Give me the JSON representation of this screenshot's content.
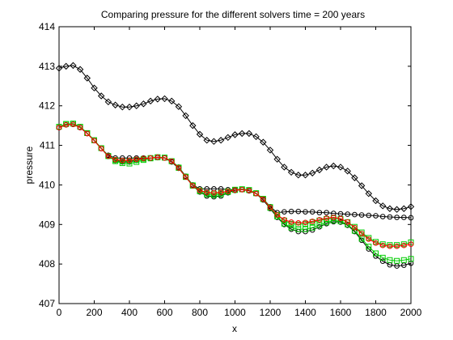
{
  "chart_data": {
    "type": "line",
    "title": "Comparing pressure for the different solvers time = 200 years",
    "xlabel": "x",
    "ylabel": "pressure",
    "xlim": [
      0,
      2000
    ],
    "ylim": [
      407,
      414
    ],
    "xticks": [
      "0",
      "200",
      "400",
      "600",
      "800",
      "1000",
      "1200",
      "1400",
      "1600",
      "1800",
      "2000"
    ],
    "yticks": [
      "407",
      "408",
      "409",
      "410",
      "411",
      "412",
      "413",
      "414"
    ],
    "grid": false,
    "legend": "none",
    "series": [
      {
        "color": "#000000",
        "marker": "diamond",
        "x": [
          0,
          40,
          80,
          120,
          160,
          200,
          240,
          280,
          320,
          360,
          400,
          440,
          480,
          520,
          560,
          600,
          640,
          680,
          720,
          760,
          800,
          840,
          880,
          920,
          960,
          1000,
          1040,
          1080,
          1120,
          1160,
          1200,
          1240,
          1280,
          1320,
          1360,
          1400,
          1440,
          1480,
          1520,
          1560,
          1600,
          1640,
          1680,
          1720,
          1760,
          1800,
          1840,
          1880,
          1920,
          1960,
          2000
        ],
        "values": [
          412.95,
          413.0,
          413.02,
          412.92,
          412.7,
          412.45,
          412.25,
          412.1,
          412.02,
          411.97,
          411.97,
          412.0,
          412.05,
          412.12,
          412.17,
          412.18,
          412.12,
          411.98,
          411.75,
          411.5,
          411.28,
          411.13,
          411.1,
          411.13,
          411.2,
          411.27,
          411.3,
          411.3,
          411.22,
          411.08,
          410.88,
          410.65,
          410.45,
          410.32,
          410.25,
          410.25,
          410.3,
          410.38,
          410.45,
          410.48,
          410.45,
          410.35,
          410.18,
          409.98,
          409.78,
          409.6,
          409.47,
          409.4,
          409.38,
          409.4,
          409.45
        ]
      },
      {
        "color": "#000000",
        "marker": "circle",
        "x": [
          0,
          40,
          80,
          120,
          160,
          200,
          240,
          280,
          320,
          360,
          400,
          440,
          480,
          520,
          560,
          600,
          640,
          680,
          720,
          760,
          800,
          840,
          880,
          920,
          960,
          1000,
          1040,
          1080,
          1120,
          1160,
          1200,
          1240,
          1280,
          1320,
          1360,
          1400,
          1440,
          1480,
          1520,
          1560,
          1600,
          1640,
          1680,
          1720,
          1760,
          1800,
          1840,
          1880,
          1920,
          1960,
          2000
        ],
        "values": [
          411.45,
          411.52,
          411.53,
          411.45,
          411.3,
          411.12,
          410.92,
          410.75,
          410.68,
          410.68,
          410.68,
          410.68,
          410.68,
          410.68,
          410.69,
          410.68,
          410.6,
          410.45,
          410.22,
          410.0,
          409.9,
          409.9,
          409.9,
          409.9,
          409.88,
          409.88,
          409.88,
          409.85,
          409.78,
          409.65,
          409.45,
          409.3,
          409.32,
          409.33,
          409.33,
          409.32,
          409.32,
          409.3,
          409.3,
          409.28,
          409.27,
          409.26,
          409.25,
          409.24,
          409.23,
          409.22,
          409.2,
          409.19,
          409.18,
          409.18,
          409.17
        ]
      },
      {
        "color": "#000000",
        "marker": "circle",
        "x": [
          0,
          40,
          80,
          120,
          160,
          200,
          240,
          280,
          320,
          360,
          400,
          440,
          480,
          520,
          560,
          600,
          640,
          680,
          720,
          760,
          800,
          840,
          880,
          920,
          960,
          1000,
          1040,
          1080,
          1120,
          1160,
          1200,
          1240,
          1280,
          1320,
          1360,
          1400,
          1440,
          1480,
          1520,
          1560,
          1600,
          1640,
          1680,
          1720,
          1760,
          1800,
          1840,
          1880,
          1920,
          1960,
          2000
        ],
        "values": [
          411.45,
          411.52,
          411.53,
          411.45,
          411.3,
          411.12,
          410.92,
          410.72,
          410.62,
          410.58,
          410.58,
          410.62,
          410.66,
          410.68,
          410.7,
          410.68,
          410.58,
          410.42,
          410.2,
          409.98,
          409.82,
          409.72,
          409.7,
          409.72,
          409.8,
          409.86,
          409.88,
          409.86,
          409.78,
          409.62,
          409.4,
          409.18,
          409.0,
          408.88,
          408.82,
          408.82,
          408.86,
          408.94,
          409.02,
          409.07,
          409.06,
          408.98,
          408.82,
          408.6,
          408.38,
          408.2,
          408.07,
          407.98,
          407.95,
          407.97,
          408.02
        ]
      },
      {
        "color": "#00cc00",
        "marker": "square",
        "x": [
          0,
          40,
          80,
          120,
          160,
          200,
          240,
          280,
          320,
          360,
          400,
          440,
          480,
          520,
          560,
          600,
          640,
          680,
          720,
          760,
          800,
          840,
          880,
          920,
          960,
          1000,
          1040,
          1080,
          1120,
          1160,
          1200,
          1240,
          1280,
          1320,
          1360,
          1400,
          1440,
          1480,
          1520,
          1560,
          1600,
          1640,
          1680,
          1720,
          1760,
          1800,
          1840,
          1880,
          1920,
          1960,
          2000
        ],
        "values": [
          411.47,
          411.54,
          411.55,
          411.47,
          411.31,
          411.13,
          410.93,
          410.73,
          410.6,
          410.55,
          410.54,
          410.58,
          410.63,
          410.67,
          410.7,
          410.69,
          410.6,
          410.43,
          410.2,
          409.98,
          409.84,
          409.76,
          409.74,
          409.76,
          409.82,
          409.87,
          409.89,
          409.87,
          409.79,
          409.64,
          409.42,
          409.2,
          409.02,
          408.92,
          408.88,
          408.88,
          408.92,
          408.98,
          409.05,
          409.1,
          409.08,
          409.0,
          408.84,
          408.64,
          408.44,
          408.27,
          408.16,
          408.1,
          408.08,
          408.1,
          408.13
        ]
      },
      {
        "color": "#00cc00",
        "marker": "square",
        "x": [
          0,
          40,
          80,
          120,
          160,
          200,
          240,
          280,
          320,
          360,
          400,
          440,
          480,
          520,
          560,
          600,
          640,
          680,
          720,
          760,
          800,
          840,
          880,
          920,
          960,
          1000,
          1040,
          1080,
          1120,
          1160,
          1200,
          1240,
          1280,
          1320,
          1360,
          1400,
          1440,
          1480,
          1520,
          1560,
          1600,
          1640,
          1680,
          1720,
          1760,
          1800,
          1840,
          1880,
          1920,
          1960,
          2000
        ],
        "values": [
          411.47,
          411.54,
          411.55,
          411.47,
          411.31,
          411.13,
          410.93,
          410.73,
          410.63,
          410.6,
          410.6,
          410.63,
          410.66,
          410.68,
          410.7,
          410.69,
          410.6,
          410.44,
          410.21,
          409.99,
          409.86,
          409.8,
          409.78,
          409.8,
          409.84,
          409.88,
          409.89,
          409.87,
          409.79,
          409.65,
          409.44,
          409.24,
          409.1,
          409.02,
          409.0,
          409.02,
          409.06,
          409.1,
          409.14,
          409.16,
          409.14,
          409.06,
          408.94,
          408.8,
          408.66,
          408.56,
          408.5,
          408.48,
          408.48,
          408.5,
          408.55
        ]
      },
      {
        "color": "#ff0000",
        "marker": "circle",
        "x": [
          0,
          40,
          80,
          120,
          160,
          200,
          240,
          280,
          320,
          360,
          400,
          440,
          480,
          520,
          560,
          600,
          640,
          680,
          720,
          760,
          800,
          840,
          880,
          920,
          960,
          1000,
          1040,
          1080,
          1120,
          1160,
          1200,
          1240,
          1280,
          1320,
          1360,
          1400,
          1440,
          1480,
          1520,
          1560,
          1600,
          1640,
          1680,
          1720,
          1760,
          1800,
          1840,
          1880,
          1920,
          1960,
          2000
        ],
        "values": [
          411.45,
          411.52,
          411.53,
          411.45,
          411.3,
          411.12,
          410.92,
          410.73,
          410.64,
          410.62,
          410.62,
          410.65,
          410.67,
          410.68,
          410.7,
          410.68,
          410.6,
          410.43,
          410.2,
          409.98,
          409.86,
          409.81,
          409.8,
          409.81,
          409.84,
          409.87,
          409.88,
          409.86,
          409.78,
          409.64,
          409.43,
          409.24,
          409.12,
          409.06,
          409.04,
          409.05,
          409.08,
          409.12,
          409.16,
          409.18,
          409.15,
          409.06,
          408.92,
          408.77,
          408.63,
          408.53,
          408.47,
          408.45,
          408.45,
          408.47,
          408.5
        ]
      }
    ]
  }
}
